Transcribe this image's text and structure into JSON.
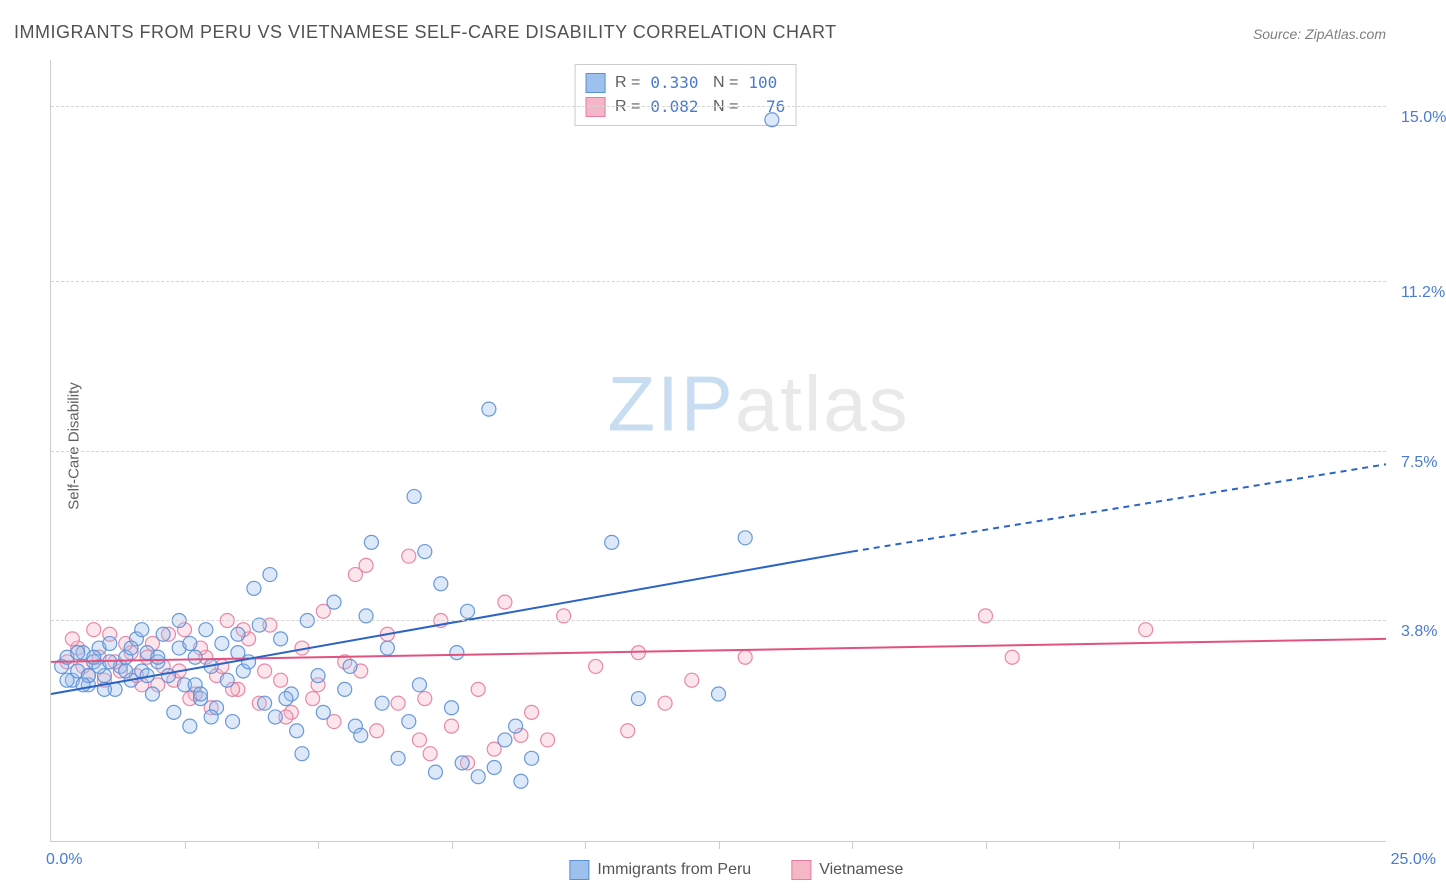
{
  "title": "IMMIGRANTS FROM PERU VS VIETNAMESE SELF-CARE DISABILITY CORRELATION CHART",
  "source_label": "Source:",
  "source_name": "ZipAtlas.com",
  "ylabel": "Self-Care Disability",
  "watermark": {
    "zip": "ZIP",
    "atlas": "atlas"
  },
  "chart": {
    "type": "scatter+regression",
    "background_color": "#ffffff",
    "grid_dash_color": "#d5d5d5",
    "axis_color": "#cccccc",
    "text_color": "#606060",
    "value_color": "#4a7bd0",
    "xlim": [
      0,
      25
    ],
    "ylim": [
      -1,
      16
    ],
    "y_ticks": [
      3.8,
      7.5,
      11.2,
      15.0
    ],
    "x_ticks_minor": [
      2.5,
      5,
      7.5,
      10,
      12.5,
      15,
      17.5,
      20,
      22.5
    ],
    "origin_label": "0.0%",
    "xmax_label": "25.0%",
    "marker_radius": 7,
    "marker_fill_opacity": 0.35,
    "marker_stroke_opacity": 0.9,
    "line_width": 2,
    "series": [
      {
        "name": "Immigrants from Peru",
        "color_fill": "#9dc1ec",
        "color_stroke": "#5b8fd6",
        "line_color": "#2b64c5",
        "r": "0.330",
        "n": "100",
        "regression": {
          "x1": 0,
          "y1": 2.2,
          "x2_solid": 15,
          "y2_solid": 5.3,
          "x2_dash": 25,
          "y2_dash": 7.2
        },
        "points": [
          [
            0.2,
            2.8
          ],
          [
            0.3,
            3.0
          ],
          [
            0.4,
            2.5
          ],
          [
            0.5,
            2.7
          ],
          [
            0.6,
            3.1
          ],
          [
            0.7,
            2.4
          ],
          [
            0.8,
            2.9
          ],
          [
            0.9,
            3.2
          ],
          [
            1.0,
            2.6
          ],
          [
            1.1,
            3.3
          ],
          [
            1.2,
            2.3
          ],
          [
            1.3,
            2.8
          ],
          [
            1.4,
            3.0
          ],
          [
            1.5,
            2.5
          ],
          [
            1.6,
            3.4
          ],
          [
            1.7,
            2.7
          ],
          [
            1.8,
            3.1
          ],
          [
            1.9,
            2.2
          ],
          [
            2.0,
            2.9
          ],
          [
            2.1,
            3.5
          ],
          [
            2.2,
            2.6
          ],
          [
            2.3,
            1.8
          ],
          [
            2.4,
            3.2
          ],
          [
            2.5,
            2.4
          ],
          [
            2.6,
            1.5
          ],
          [
            2.7,
            3.0
          ],
          [
            2.8,
            2.1
          ],
          [
            2.9,
            3.6
          ],
          [
            3.0,
            2.8
          ],
          [
            3.1,
            1.9
          ],
          [
            3.2,
            3.3
          ],
          [
            3.3,
            2.5
          ],
          [
            3.4,
            1.6
          ],
          [
            3.5,
            3.1
          ],
          [
            3.6,
            2.7
          ],
          [
            3.8,
            4.5
          ],
          [
            4.0,
            2.0
          ],
          [
            4.1,
            4.8
          ],
          [
            4.2,
            1.7
          ],
          [
            4.3,
            3.4
          ],
          [
            4.5,
            2.2
          ],
          [
            4.6,
            1.4
          ],
          [
            4.8,
            3.8
          ],
          [
            5.0,
            2.6
          ],
          [
            5.1,
            1.8
          ],
          [
            5.3,
            4.2
          ],
          [
            5.5,
            2.3
          ],
          [
            5.7,
            1.5
          ],
          [
            5.9,
            3.9
          ],
          [
            6.0,
            5.5
          ],
          [
            6.2,
            2.0
          ],
          [
            6.5,
            0.8
          ],
          [
            6.7,
            1.6
          ],
          [
            6.8,
            6.5
          ],
          [
            7.0,
            5.3
          ],
          [
            7.2,
            0.5
          ],
          [
            7.3,
            4.6
          ],
          [
            7.5,
            1.9
          ],
          [
            7.7,
            0.7
          ],
          [
            7.8,
            4.0
          ],
          [
            8.0,
            0.4
          ],
          [
            8.2,
            8.4
          ],
          [
            8.3,
            0.6
          ],
          [
            8.5,
            1.2
          ],
          [
            8.8,
            0.3
          ],
          [
            9.0,
            0.8
          ],
          [
            10.5,
            5.5
          ],
          [
            11.0,
            2.1
          ],
          [
            12.5,
            2.2
          ],
          [
            13.0,
            5.6
          ],
          [
            13.5,
            14.7
          ],
          [
            2.4,
            3.8
          ],
          [
            3.7,
            2.9
          ],
          [
            1.0,
            2.3
          ],
          [
            0.5,
            3.1
          ],
          [
            1.8,
            2.6
          ],
          [
            2.7,
            2.4
          ],
          [
            0.9,
            2.8
          ],
          [
            1.5,
            3.2
          ],
          [
            0.3,
            2.5
          ],
          [
            3.9,
            3.7
          ],
          [
            4.4,
            2.1
          ],
          [
            5.6,
            2.8
          ],
          [
            6.3,
            3.2
          ],
          [
            1.1,
            2.9
          ],
          [
            0.7,
            2.6
          ],
          [
            2.0,
            3.0
          ],
          [
            1.4,
            2.7
          ],
          [
            0.6,
            2.4
          ],
          [
            2.6,
            3.3
          ],
          [
            3.0,
            1.7
          ],
          [
            4.7,
            0.9
          ],
          [
            5.8,
            1.3
          ],
          [
            6.9,
            2.4
          ],
          [
            7.6,
            3.1
          ],
          [
            8.7,
            1.5
          ],
          [
            1.7,
            3.6
          ],
          [
            0.8,
            3.0
          ],
          [
            2.8,
            2.2
          ],
          [
            3.5,
            3.5
          ]
        ]
      },
      {
        "name": "Vietnamese",
        "color_fill": "#f5b7c8",
        "color_stroke": "#e77ba0",
        "line_color": "#e2527f",
        "r": "0.082",
        "n": "76",
        "regression": {
          "x1": 0,
          "y1": 2.9,
          "x2_solid": 25,
          "y2_solid": 3.4,
          "x2_dash": 25,
          "y2_dash": 3.4
        },
        "points": [
          [
            0.3,
            2.9
          ],
          [
            0.5,
            3.2
          ],
          [
            0.7,
            2.6
          ],
          [
            0.9,
            3.0
          ],
          [
            1.1,
            3.5
          ],
          [
            1.3,
            2.7
          ],
          [
            1.5,
            3.1
          ],
          [
            1.7,
            2.4
          ],
          [
            1.9,
            3.3
          ],
          [
            2.1,
            2.8
          ],
          [
            2.3,
            2.5
          ],
          [
            2.5,
            3.6
          ],
          [
            2.7,
            2.2
          ],
          [
            2.9,
            3.0
          ],
          [
            3.1,
            2.6
          ],
          [
            3.3,
            3.8
          ],
          [
            3.5,
            2.3
          ],
          [
            3.7,
            3.4
          ],
          [
            3.9,
            2.0
          ],
          [
            4.1,
            3.7
          ],
          [
            4.3,
            2.5
          ],
          [
            4.5,
            1.8
          ],
          [
            4.7,
            3.2
          ],
          [
            4.9,
            2.1
          ],
          [
            5.1,
            4.0
          ],
          [
            5.3,
            1.6
          ],
          [
            5.5,
            2.9
          ],
          [
            5.7,
            4.8
          ],
          [
            5.9,
            5.0
          ],
          [
            6.1,
            1.4
          ],
          [
            6.3,
            3.5
          ],
          [
            6.5,
            2.0
          ],
          [
            6.7,
            5.2
          ],
          [
            6.9,
            1.2
          ],
          [
            7.1,
            0.9
          ],
          [
            7.3,
            3.8
          ],
          [
            7.5,
            1.5
          ],
          [
            7.8,
            0.7
          ],
          [
            8.0,
            2.3
          ],
          [
            8.3,
            1.0
          ],
          [
            8.5,
            4.2
          ],
          [
            8.8,
            1.3
          ],
          [
            9.3,
            1.2
          ],
          [
            9.6,
            3.9
          ],
          [
            10.2,
            2.8
          ],
          [
            10.8,
            1.4
          ],
          [
            11.0,
            3.1
          ],
          [
            11.5,
            2.0
          ],
          [
            12.0,
            2.5
          ],
          [
            13.0,
            3.0
          ],
          [
            17.5,
            3.9
          ],
          [
            18.0,
            3.0
          ],
          [
            20.5,
            3.6
          ],
          [
            0.4,
            3.4
          ],
          [
            0.6,
            2.8
          ],
          [
            0.8,
            3.6
          ],
          [
            1.0,
            2.5
          ],
          [
            1.2,
            2.9
          ],
          [
            1.4,
            3.3
          ],
          [
            1.6,
            2.6
          ],
          [
            1.8,
            3.0
          ],
          [
            2.0,
            2.4
          ],
          [
            2.2,
            3.5
          ],
          [
            2.4,
            2.7
          ],
          [
            2.6,
            2.1
          ],
          [
            2.8,
            3.2
          ],
          [
            3.0,
            1.9
          ],
          [
            3.2,
            2.8
          ],
          [
            3.4,
            2.3
          ],
          [
            3.6,
            3.6
          ],
          [
            4.0,
            2.7
          ],
          [
            4.4,
            1.7
          ],
          [
            5.0,
            2.4
          ],
          [
            5.8,
            2.7
          ],
          [
            7.0,
            2.1
          ],
          [
            9.0,
            1.8
          ]
        ]
      }
    ]
  },
  "bottom_legend": [
    {
      "label": "Immigrants from Peru",
      "fill": "#9dc1ec",
      "stroke": "#5b8fd6"
    },
    {
      "label": "Vietnamese",
      "fill": "#f5b7c8",
      "stroke": "#e77ba0"
    }
  ]
}
